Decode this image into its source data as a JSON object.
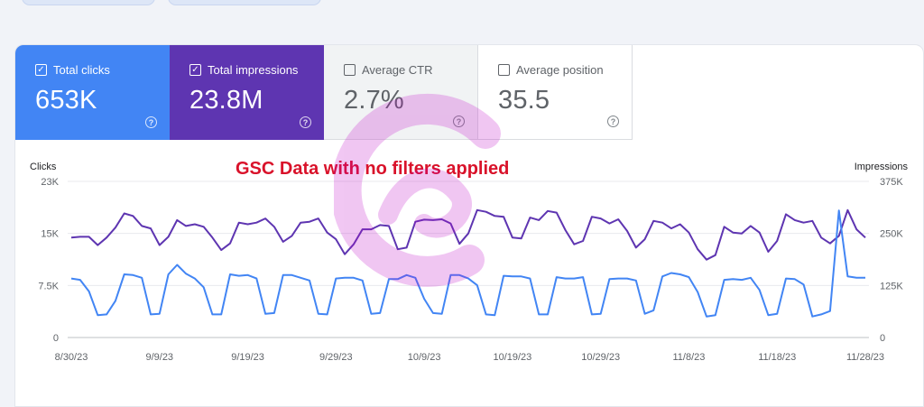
{
  "metrics": [
    {
      "label": "Total clicks",
      "value": "653K",
      "checked": true,
      "color": "#4285f4"
    },
    {
      "label": "Total impressions",
      "value": "23.8M",
      "checked": true,
      "color": "#5e35b1"
    },
    {
      "label": "Average CTR",
      "value": "2.7%",
      "checked": false,
      "color": "#f1f3f4"
    },
    {
      "label": "Average position",
      "value": "35.5",
      "checked": false,
      "color": "#ffffff"
    }
  ],
  "icons": {
    "checkbox": "check-icon",
    "help": "help-circle-icon",
    "watermark": "logo-watermark"
  },
  "chart_data": {
    "type": "line",
    "annotation": "GSC Data with no filters applied",
    "y_left": {
      "label": "Clicks",
      "ticks": [
        "0",
        "7.5K",
        "15K",
        "23K"
      ],
      "range": [
        0,
        23000
      ]
    },
    "y_right": {
      "label": "Impressions",
      "ticks": [
        "0",
        "125K",
        "250K",
        "375K"
      ],
      "range": [
        0,
        375000
      ]
    },
    "x_ticks": [
      "8/30/23",
      "9/9/23",
      "9/19/23",
      "9/29/23",
      "10/9/23",
      "10/19/23",
      "10/29/23",
      "11/8/23",
      "11/18/23",
      "11/28/23"
    ],
    "x_range": [
      "2023-08-30",
      "2023-11-30"
    ],
    "grid": true,
    "series": [
      {
        "name": "Impressions",
        "axis": "right",
        "color": "#5e35b1",
        "values": [
          240000,
          242000,
          242000,
          222000,
          240000,
          264000,
          298000,
          292000,
          268000,
          262000,
          222000,
          242000,
          282000,
          268000,
          272000,
          266000,
          240000,
          210000,
          226000,
          276000,
          272000,
          276000,
          286000,
          266000,
          230000,
          244000,
          276000,
          278000,
          286000,
          252000,
          236000,
          200000,
          224000,
          260000,
          260000,
          270000,
          268000,
          212000,
          216000,
          278000,
          283000,
          282000,
          284000,
          274000,
          225000,
          250000,
          306000,
          302000,
          292000,
          290000,
          240000,
          238000,
          288000,
          282000,
          304000,
          300000,
          258000,
          224000,
          232000,
          290000,
          286000,
          274000,
          284000,
          256000,
          216000,
          236000,
          280000,
          276000,
          262000,
          272000,
          252000,
          212000,
          187000,
          198000,
          266000,
          252000,
          250000,
          268000,
          252000,
          206000,
          232000,
          296000,
          282000,
          276000,
          280000,
          240000,
          226000,
          244000,
          306000,
          260000,
          240000
        ]
      },
      {
        "name": "Clicks",
        "axis": "left",
        "color": "#4285f4",
        "values": [
          8700,
          8500,
          6800,
          3300,
          3400,
          5400,
          9300,
          9200,
          8800,
          3400,
          3500,
          9300,
          10700,
          9400,
          8700,
          7400,
          3400,
          3400,
          9300,
          9100,
          9200,
          8700,
          3500,
          3600,
          9200,
          9200,
          8800,
          8400,
          3500,
          3400,
          8700,
          8800,
          8800,
          8400,
          3500,
          3600,
          8600,
          8600,
          9200,
          8800,
          5700,
          3600,
          3500,
          9200,
          9200,
          8700,
          7700,
          3400,
          3300,
          9100,
          9000,
          9000,
          8700,
          3400,
          3400,
          8900,
          8700,
          8700,
          8900,
          3400,
          3500,
          8600,
          8700,
          8700,
          8400,
          3500,
          4000,
          9000,
          9500,
          9300,
          8900,
          6700,
          3100,
          3300,
          8500,
          8600,
          8500,
          8800,
          7000,
          3300,
          3500,
          8700,
          8600,
          7800,
          3100,
          3400,
          3900,
          18700,
          9000,
          8800,
          8800
        ]
      }
    ]
  }
}
